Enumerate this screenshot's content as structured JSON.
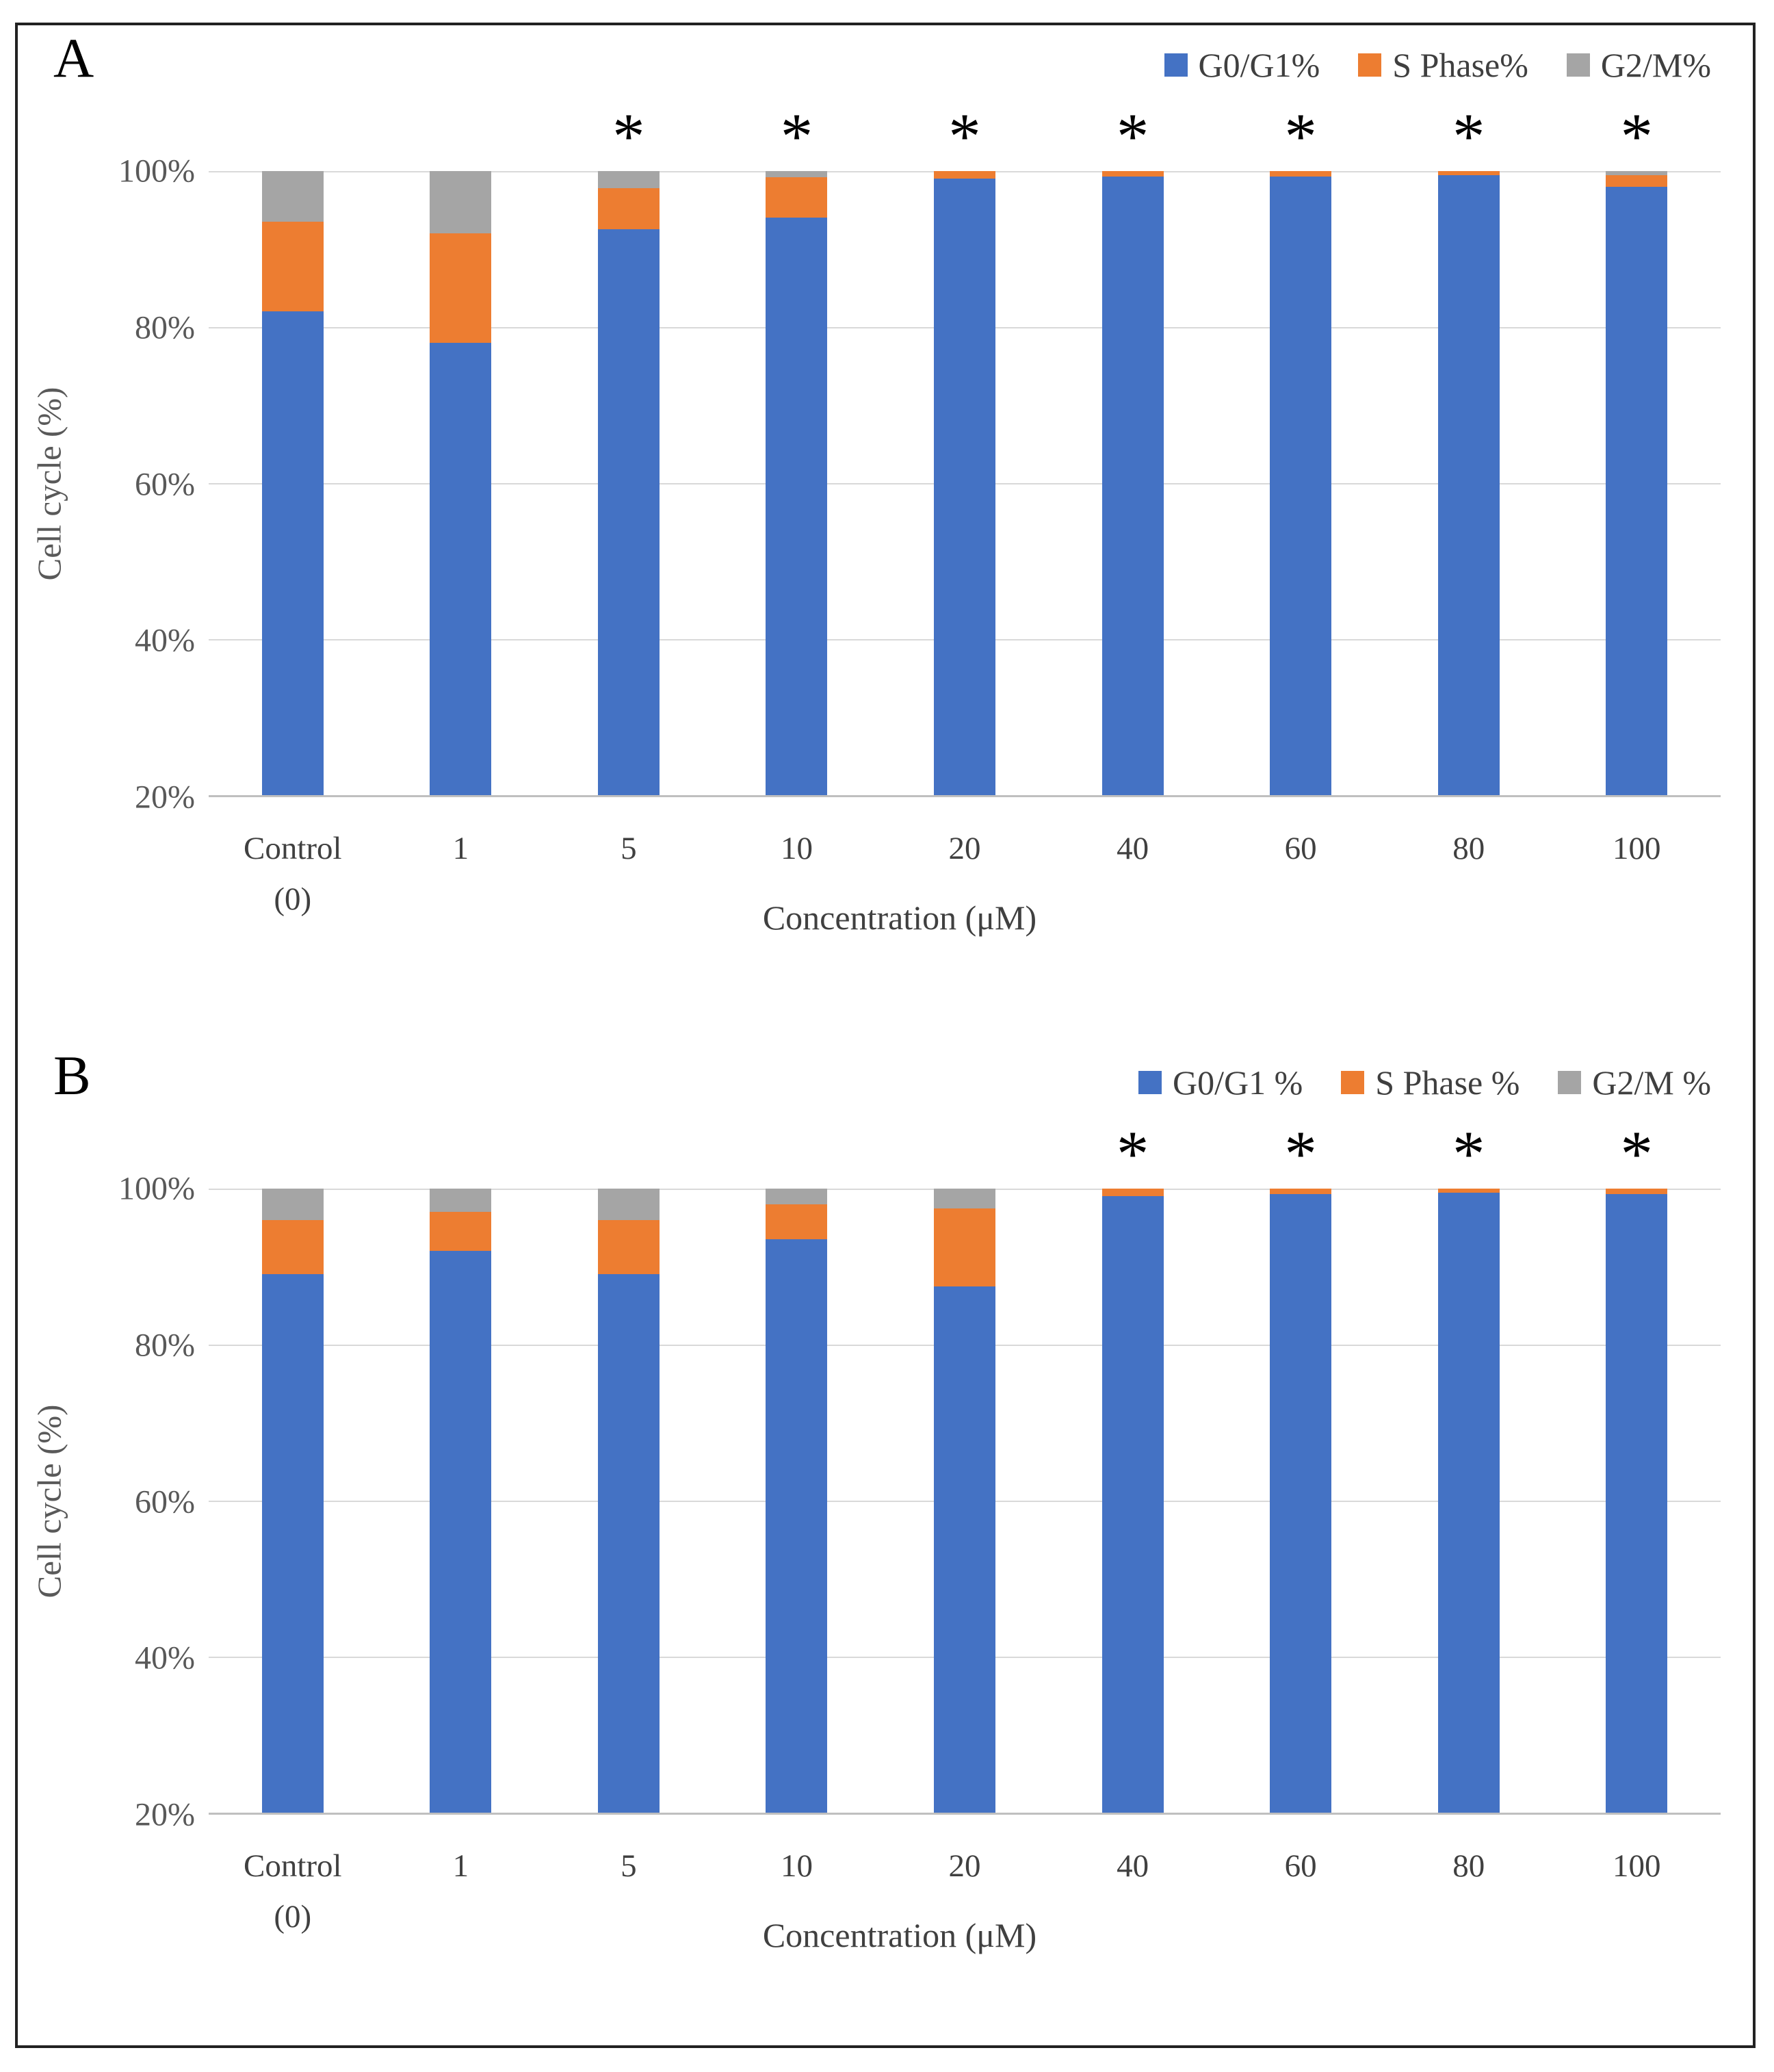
{
  "figure": {
    "description": "Two-panel stacked bar figure of cell cycle distribution vs concentration",
    "accent_colors": {
      "g0g1_blue": "#4472C4",
      "s_phase_orange": "#ED7D31",
      "g2m_gray": "#A5A5A5"
    }
  },
  "chart_data": [
    {
      "type": "bar",
      "stacked": true,
      "panel_label": "A",
      "categories": [
        "Control (0)",
        "1",
        "5",
        "10",
        "20",
        "40",
        "60",
        "80",
        "100"
      ],
      "x_tick_lines": [
        [
          "Control",
          "(0)"
        ],
        [
          "1"
        ],
        [
          "5"
        ],
        [
          "10"
        ],
        [
          "20"
        ],
        [
          "40"
        ],
        [
          "60"
        ],
        [
          "80"
        ],
        [
          "100"
        ]
      ],
      "series": [
        {
          "name": "G0/G1%",
          "color": "#4472C4",
          "values": [
            82,
            78,
            92.5,
            94,
            99,
            99.3,
            99.3,
            99.5,
            98
          ]
        },
        {
          "name": "S Phase%",
          "color": "#ED7D31",
          "values": [
            11.5,
            14,
            5.3,
            5.2,
            1,
            0.7,
            0.7,
            0.5,
            1.5
          ]
        },
        {
          "name": "G2/M%",
          "color": "#A5A5A5",
          "values": [
            6.5,
            8,
            2.2,
            0.8,
            0,
            0,
            0,
            0,
            0.5
          ]
        }
      ],
      "significance_marks": [
        "",
        "",
        "*",
        "*",
        "*",
        "*",
        "*",
        "*",
        "*"
      ],
      "xlabel": "Concentration (μM)",
      "ylabel": "Cell cycle (%)",
      "ylim": [
        20,
        100
      ],
      "y_ticks": [
        "100%",
        "80%",
        "60%",
        "40%",
        "20%"
      ],
      "legend_position": "top-right",
      "grid": true
    },
    {
      "type": "bar",
      "stacked": true,
      "panel_label": "B",
      "categories": [
        "Control (0)",
        "1",
        "5",
        "10",
        "20",
        "40",
        "60",
        "80",
        "100"
      ],
      "x_tick_lines": [
        [
          "Control",
          "(0)"
        ],
        [
          "1"
        ],
        [
          "5"
        ],
        [
          "10"
        ],
        [
          "20"
        ],
        [
          "40"
        ],
        [
          "60"
        ],
        [
          "80"
        ],
        [
          "100"
        ]
      ],
      "series": [
        {
          "name": "G0/G1 %",
          "color": "#4472C4",
          "values": [
            89,
            92,
            89,
            93.5,
            87.5,
            99,
            99.3,
            99.5,
            99.3
          ]
        },
        {
          "name": "S Phase %",
          "color": "#ED7D31",
          "values": [
            7,
            5,
            7,
            4.5,
            10,
            1,
            0.7,
            0.5,
            0.7
          ]
        },
        {
          "name": "G2/M %",
          "color": "#A5A5A5",
          "values": [
            4,
            3,
            4,
            2,
            2.5,
            0,
            0,
            0,
            0
          ]
        }
      ],
      "significance_marks": [
        "",
        "",
        "",
        "",
        "",
        "*",
        "*",
        "*",
        "*"
      ],
      "xlabel": "Concentration (μM)",
      "ylabel": "Cell cycle (%)",
      "ylim": [
        20,
        100
      ],
      "y_ticks": [
        "100%",
        "80%",
        "60%",
        "40%",
        "20%"
      ],
      "legend_position": "top-right",
      "grid": true
    }
  ]
}
